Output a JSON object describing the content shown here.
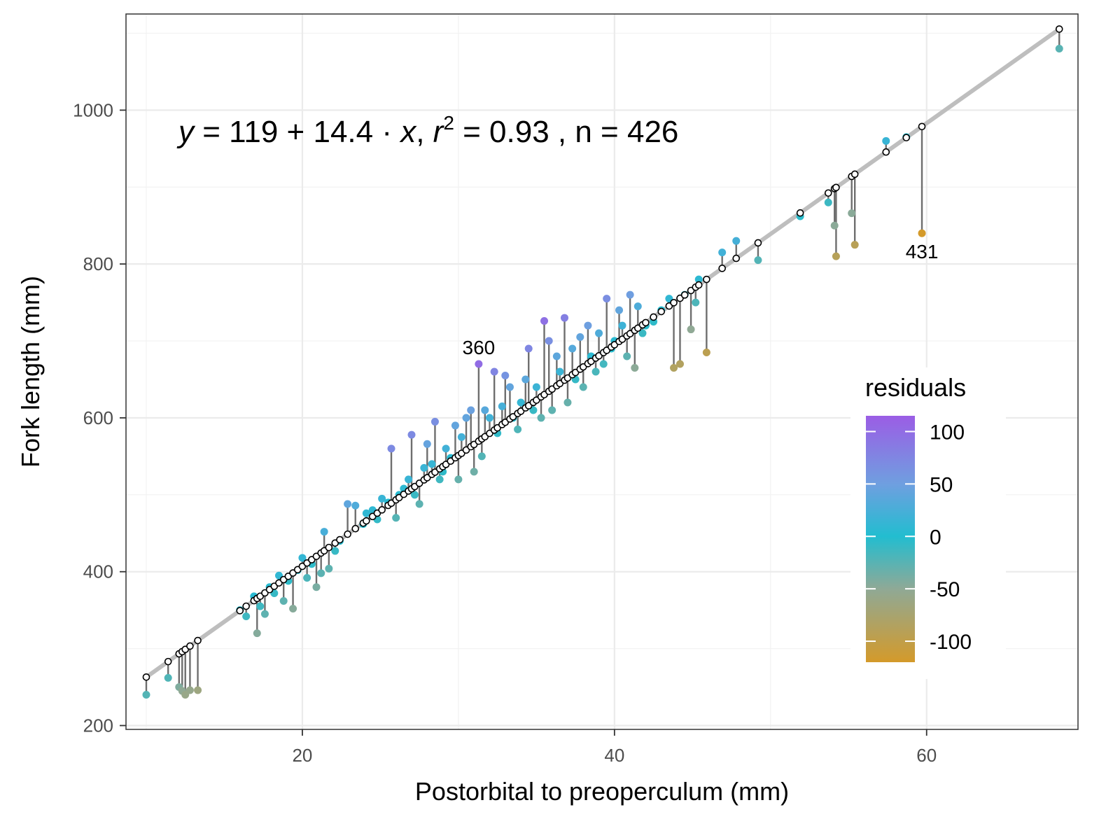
{
  "chart_data": {
    "type": "scatter",
    "title": "",
    "xlabel": "Postorbital to preoperculum (mm)",
    "ylabel": "Fork length (mm)",
    "xlim": [
      8.7,
      69.7
    ],
    "ylim": [
      195,
      1125
    ],
    "x_ticks": [
      20,
      40,
      60
    ],
    "x_tick_labels": [
      "20",
      "40",
      "60"
    ],
    "y_ticks": [
      200,
      400,
      600,
      800,
      1000
    ],
    "y_tick_labels": [
      "200",
      "400",
      "600",
      "800",
      "1000"
    ],
    "grid": true,
    "legend_position": "right",
    "equation": {
      "y": "y",
      "equals": " = ",
      "intercept": "119",
      "plus": " + ",
      "slope": "14.4",
      "dot": " · ",
      "x": "x",
      "sep": ",  ",
      "r": "r",
      "r_exp": "2",
      "r2_text": " = 0.93 , n = 426"
    },
    "model": {
      "intercept": 119,
      "slope": 14.4,
      "r2": 0.93,
      "n": 426
    },
    "color_legend": {
      "title": "residuals",
      "ticks": [
        100,
        50,
        0,
        -50,
        -100
      ],
      "tick_labels": [
        "100",
        "50",
        "0",
        "-50",
        "-100"
      ],
      "range": [
        -120,
        115
      ],
      "colors": [
        {
          "value": 115,
          "color": "#9b5de5"
        },
        {
          "value": 50,
          "color": "#6f9fe0"
        },
        {
          "value": 0,
          "color": "#22bdd0"
        },
        {
          "value": -50,
          "color": "#8fa996"
        },
        {
          "value": -120,
          "color": "#d49a2a"
        }
      ]
    },
    "labeled_points": [
      {
        "label": "360",
        "x": 31.3,
        "y": 670
      },
      {
        "label": "431",
        "x": 59.7,
        "y": 840
      }
    ],
    "points": [
      [
        10.0,
        240
      ],
      [
        11.4,
        262
      ],
      [
        12.1,
        250
      ],
      [
        12.3,
        245
      ],
      [
        12.5,
        240
      ],
      [
        12.8,
        246
      ],
      [
        13.3,
        246
      ],
      [
        16.0,
        350
      ],
      [
        16.4,
        342
      ],
      [
        16.9,
        368
      ],
      [
        17.1,
        320
      ],
      [
        17.3,
        355
      ],
      [
        17.6,
        345
      ],
      [
        17.9,
        380
      ],
      [
        18.2,
        372
      ],
      [
        18.5,
        395
      ],
      [
        18.8,
        362
      ],
      [
        19.1,
        388
      ],
      [
        19.4,
        352
      ],
      [
        19.7,
        402
      ],
      [
        20.0,
        418
      ],
      [
        20.3,
        392
      ],
      [
        20.6,
        410
      ],
      [
        20.9,
        380
      ],
      [
        21.2,
        398
      ],
      [
        21.4,
        452
      ],
      [
        21.7,
        404
      ],
      [
        22.1,
        427
      ],
      [
        22.4,
        440
      ],
      [
        22.9,
        488
      ],
      [
        23.4,
        486
      ],
      [
        23.9,
        462
      ],
      [
        24.1,
        476
      ],
      [
        24.5,
        480
      ],
      [
        24.8,
        468
      ],
      [
        25.1,
        495
      ],
      [
        25.5,
        490
      ],
      [
        25.7,
        560
      ],
      [
        26.0,
        470
      ],
      [
        26.2,
        500
      ],
      [
        26.5,
        508
      ],
      [
        26.8,
        520
      ],
      [
        27.0,
        578
      ],
      [
        27.2,
        500
      ],
      [
        27.5,
        488
      ],
      [
        27.8,
        535
      ],
      [
        28.0,
        566
      ],
      [
        28.3,
        540
      ],
      [
        28.5,
        595
      ],
      [
        28.8,
        520
      ],
      [
        29.0,
        530
      ],
      [
        29.2,
        560
      ],
      [
        29.5,
        548
      ],
      [
        29.8,
        590
      ],
      [
        30.0,
        520
      ],
      [
        30.2,
        575
      ],
      [
        30.5,
        600
      ],
      [
        30.8,
        610
      ],
      [
        31.0,
        530
      ],
      [
        31.3,
        670
      ],
      [
        31.5,
        550
      ],
      [
        31.7,
        610
      ],
      [
        32.0,
        600
      ],
      [
        32.3,
        660
      ],
      [
        32.5,
        580
      ],
      [
        32.8,
        615
      ],
      [
        33.0,
        655
      ],
      [
        33.3,
        640
      ],
      [
        33.5,
        600
      ],
      [
        33.8,
        585
      ],
      [
        34.0,
        620
      ],
      [
        34.3,
        650
      ],
      [
        34.5,
        690
      ],
      [
        34.8,
        610
      ],
      [
        35.0,
        640
      ],
      [
        35.3,
        600
      ],
      [
        35.5,
        726
      ],
      [
        35.8,
        700
      ],
      [
        36.0,
        610
      ],
      [
        36.3,
        680
      ],
      [
        36.5,
        660
      ],
      [
        36.8,
        730
      ],
      [
        37.0,
        620
      ],
      [
        37.3,
        690
      ],
      [
        37.5,
        650
      ],
      [
        37.8,
        705
      ],
      [
        38.0,
        640
      ],
      [
        38.3,
        720
      ],
      [
        38.5,
        680
      ],
      [
        38.8,
        660
      ],
      [
        39.0,
        710
      ],
      [
        39.3,
        670
      ],
      [
        39.5,
        755
      ],
      [
        39.8,
        690
      ],
      [
        40.0,
        700
      ],
      [
        40.3,
        740
      ],
      [
        40.5,
        720
      ],
      [
        40.8,
        680
      ],
      [
        41.0,
        760
      ],
      [
        41.3,
        665
      ],
      [
        41.5,
        745
      ],
      [
        41.8,
        710
      ],
      [
        42.0,
        720
      ],
      [
        42.5,
        725
      ],
      [
        43.0,
        740
      ],
      [
        43.5,
        755
      ],
      [
        43.8,
        665
      ],
      [
        44.2,
        670
      ],
      [
        44.5,
        760
      ],
      [
        44.9,
        715
      ],
      [
        45.2,
        750
      ],
      [
        45.4,
        780
      ],
      [
        45.9,
        685
      ],
      [
        46.9,
        815
      ],
      [
        47.8,
        830
      ],
      [
        49.2,
        805
      ],
      [
        51.9,
        862
      ],
      [
        53.7,
        880
      ],
      [
        54.1,
        850
      ],
      [
        54.2,
        810
      ],
      [
        55.2,
        866
      ],
      [
        55.4,
        825
      ],
      [
        57.4,
        960
      ],
      [
        58.7,
        965
      ],
      [
        59.7,
        840
      ],
      [
        68.5,
        1080
      ]
    ]
  }
}
